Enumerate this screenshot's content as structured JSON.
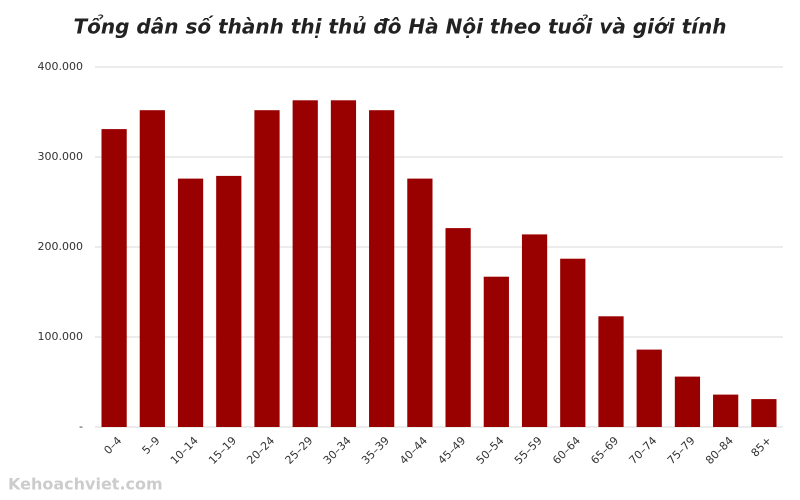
{
  "chart_data": {
    "type": "bar",
    "title": "Tổng dân số thành thị thủ đô Hà Nội theo tuổi và giới tính",
    "categories": [
      "0–4",
      "5–9",
      "10–14",
      "15–19",
      "20–24",
      "25–29",
      "30–34",
      "35–39",
      "40–44",
      "45–49",
      "50–54",
      "55–59",
      "60–64",
      "65–69",
      "70–74",
      "75–79",
      "80–84",
      "85+"
    ],
    "values": [
      331000,
      352000,
      276000,
      279000,
      352000,
      363000,
      363000,
      352000,
      276000,
      221000,
      167000,
      214000,
      187000,
      123000,
      86000,
      56000,
      36000,
      31000
    ],
    "color": "#990000",
    "ylim": [
      0,
      400000
    ],
    "yticks": [
      {
        "value": 0,
        "label": "-"
      },
      {
        "value": 100000,
        "label": "100.000"
      },
      {
        "value": 200000,
        "label": "200.000"
      },
      {
        "value": 300000,
        "label": "300.000"
      },
      {
        "value": 400000,
        "label": "400.000"
      }
    ],
    "grid": true
  },
  "watermark": "Kehoachviet.com"
}
